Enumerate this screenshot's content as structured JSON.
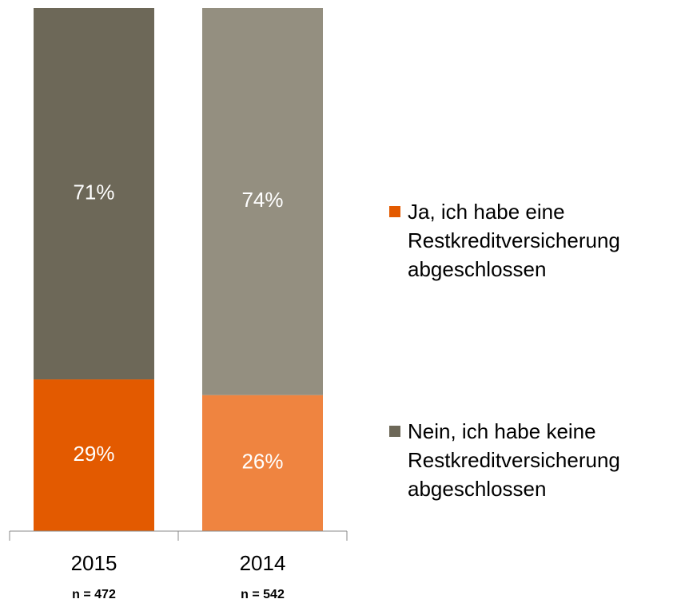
{
  "chart_data": {
    "type": "stacked_bar",
    "categories": [
      "2015",
      "2014"
    ],
    "category_notes": [
      "n = 472",
      "n = 542"
    ],
    "ylim": [
      0,
      100
    ],
    "series": [
      {
        "name": "Ja, ich habe eine Restkreditversicherung abgeschlossen",
        "color": "#e35a00",
        "bar_colors": [
          "#e35a00",
          "#ef8440"
        ],
        "values": [
          29,
          26
        ],
        "value_labels": [
          "29%",
          "26%"
        ]
      },
      {
        "name": "Nein, ich habe keine Restkreditversicherung abgeschlossen",
        "color": "#6d6858",
        "bar_colors": [
          "#6d6858",
          "#948f80"
        ],
        "values": [
          71,
          74
        ],
        "value_labels": [
          "71%",
          "74%"
        ]
      }
    ]
  }
}
